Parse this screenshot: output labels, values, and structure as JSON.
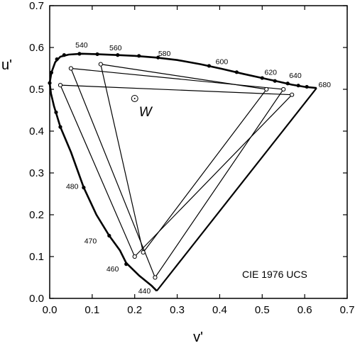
{
  "chart_data": {
    "type": "scatter",
    "title": "",
    "annotation": "CIE 1976 UCS",
    "xlabel": "v'",
    "ylabel": "u'",
    "xlim": [
      0.0,
      0.7
    ],
    "ylim": [
      0.0,
      0.7
    ],
    "x_ticks": [
      "0.0",
      "0.1",
      "0.2",
      "0.3",
      "0.4",
      "0.5",
      "0.6",
      "0.7"
    ],
    "y_ticks": [
      "0.0",
      "0.1",
      "0.2",
      "0.3",
      "0.4",
      "0.5",
      "0.6",
      "0.7"
    ],
    "grid": false,
    "spectral_locus": [
      [
        0.628,
        0.503
      ],
      [
        0.6,
        0.506
      ],
      [
        0.57,
        0.511
      ],
      [
        0.54,
        0.518
      ],
      [
        0.5,
        0.527
      ],
      [
        0.455,
        0.537
      ],
      [
        0.405,
        0.549
      ],
      [
        0.355,
        0.56
      ],
      [
        0.3,
        0.57
      ],
      [
        0.25,
        0.576
      ],
      [
        0.2,
        0.58
      ],
      [
        0.155,
        0.582
      ],
      [
        0.11,
        0.584
      ],
      [
        0.075,
        0.585
      ],
      [
        0.045,
        0.583
      ],
      [
        0.025,
        0.578
      ],
      [
        0.013,
        0.565
      ],
      [
        0.004,
        0.54
      ],
      [
        0.0,
        0.515
      ],
      [
        0.003,
        0.49
      ],
      [
        0.01,
        0.46
      ],
      [
        0.025,
        0.41
      ],
      [
        0.05,
        0.35
      ],
      [
        0.08,
        0.265
      ],
      [
        0.11,
        0.2
      ],
      [
        0.14,
        0.15
      ],
      [
        0.165,
        0.115
      ],
      [
        0.18,
        0.085
      ],
      [
        0.21,
        0.055
      ],
      [
        0.24,
        0.03
      ],
      [
        0.252,
        0.018
      ]
    ],
    "purple_line": [
      [
        0.252,
        0.018
      ],
      [
        0.628,
        0.503
      ]
    ],
    "locus_markers": [
      [
        0.004,
        0.54
      ],
      [
        0.017,
        0.572
      ],
      [
        0.034,
        0.582
      ],
      [
        0.07,
        0.585
      ],
      [
        0.112,
        0.584
      ],
      [
        0.16,
        0.582
      ],
      [
        0.21,
        0.58
      ],
      [
        0.255,
        0.576
      ],
      [
        0.375,
        0.556
      ],
      [
        0.44,
        0.541
      ],
      [
        0.5,
        0.527
      ],
      [
        0.53,
        0.52
      ],
      [
        0.56,
        0.514
      ],
      [
        0.585,
        0.509
      ],
      [
        0.605,
        0.506
      ],
      [
        0.0,
        0.515
      ],
      [
        0.015,
        0.445
      ],
      [
        0.025,
        0.41
      ],
      [
        0.08,
        0.265
      ],
      [
        0.14,
        0.15
      ],
      [
        0.18,
        0.082
      ]
    ],
    "wavelength_labels": [
      {
        "text": "540",
        "v": 0.075,
        "u": 0.6
      },
      {
        "text": "560",
        "v": 0.155,
        "u": 0.593
      },
      {
        "text": "580",
        "v": 0.27,
        "u": 0.58
      },
      {
        "text": "600",
        "v": 0.405,
        "u": 0.56
      },
      {
        "text": "620",
        "v": 0.52,
        "u": 0.535
      },
      {
        "text": "640",
        "v": 0.578,
        "u": 0.527
      },
      {
        "text": "680",
        "v": 0.647,
        "u": 0.505
      },
      {
        "text": "480",
        "v": 0.053,
        "u": 0.262
      },
      {
        "text": "470",
        "v": 0.096,
        "u": 0.131
      },
      {
        "text": "460",
        "v": 0.148,
        "u": 0.064
      },
      {
        "text": "440",
        "v": 0.223,
        "u": 0.012
      }
    ],
    "series": [
      {
        "values": [
          [
            0.025,
            0.51
          ],
          [
            0.57,
            0.487
          ],
          [
            0.2,
            0.1
          ]
        ]
      },
      {
        "values": [
          [
            0.05,
            0.55
          ],
          [
            0.55,
            0.5
          ],
          [
            0.248,
            0.05
          ]
        ]
      },
      {
        "values": [
          [
            0.12,
            0.56
          ],
          [
            0.51,
            0.5
          ],
          [
            0.22,
            0.11
          ]
        ]
      }
    ],
    "white_point": {
      "label": "W",
      "v": 0.2,
      "u": 0.478
    }
  }
}
